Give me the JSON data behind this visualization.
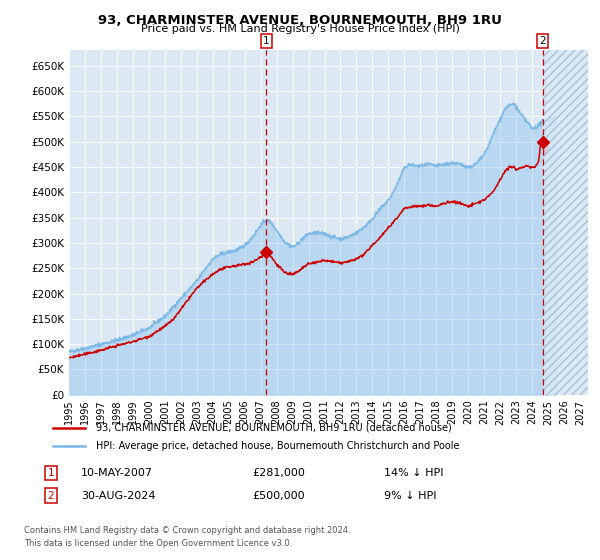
{
  "title": "93, CHARMINSTER AVENUE, BOURNEMOUTH, BH9 1RU",
  "subtitle": "Price paid vs. HM Land Registry's House Price Index (HPI)",
  "ylim": [
    0,
    680000
  ],
  "xlim_start": 1995.0,
  "xlim_end": 2027.5,
  "bg_color": "#dce9f5",
  "grid_color": "#ffffff",
  "hpi_color": "#7ab8e8",
  "hpi_fill_alpha": 0.35,
  "price_color": "#cc0000",
  "marker_color": "#cc0000",
  "t1_x": 2007.36,
  "t1_price": 281000,
  "t1_label": "10-MAY-2007",
  "t1_pct": "14% ↓ HPI",
  "t1_num": "1",
  "t2_x": 2024.66,
  "t2_price": 500000,
  "t2_label": "30-AUG-2024",
  "t2_pct": "9% ↓ HPI",
  "t2_num": "2",
  "legend1": "93, CHARMINSTER AVENUE, BOURNEMOUTH, BH9 1RU (detached house)",
  "legend2": "HPI: Average price, detached house, Bournemouth Christchurch and Poole",
  "footnote1": "Contains HM Land Registry data © Crown copyright and database right 2024.",
  "footnote2": "This data is licensed under the Open Government Licence v3.0.",
  "yticks": [
    0,
    50000,
    100000,
    150000,
    200000,
    250000,
    300000,
    350000,
    400000,
    450000,
    500000,
    550000,
    600000,
    650000
  ],
  "ytick_labels": [
    "£0",
    "£50K",
    "£100K",
    "£150K",
    "£200K",
    "£250K",
    "£300K",
    "£350K",
    "£400K",
    "£450K",
    "£500K",
    "£550K",
    "£600K",
    "£650K"
  ],
  "xticks": [
    1995,
    1996,
    1997,
    1998,
    1999,
    2000,
    2001,
    2002,
    2003,
    2004,
    2005,
    2006,
    2007,
    2008,
    2009,
    2010,
    2011,
    2012,
    2013,
    2014,
    2015,
    2016,
    2017,
    2018,
    2019,
    2020,
    2021,
    2022,
    2023,
    2024,
    2025,
    2026,
    2027
  ]
}
